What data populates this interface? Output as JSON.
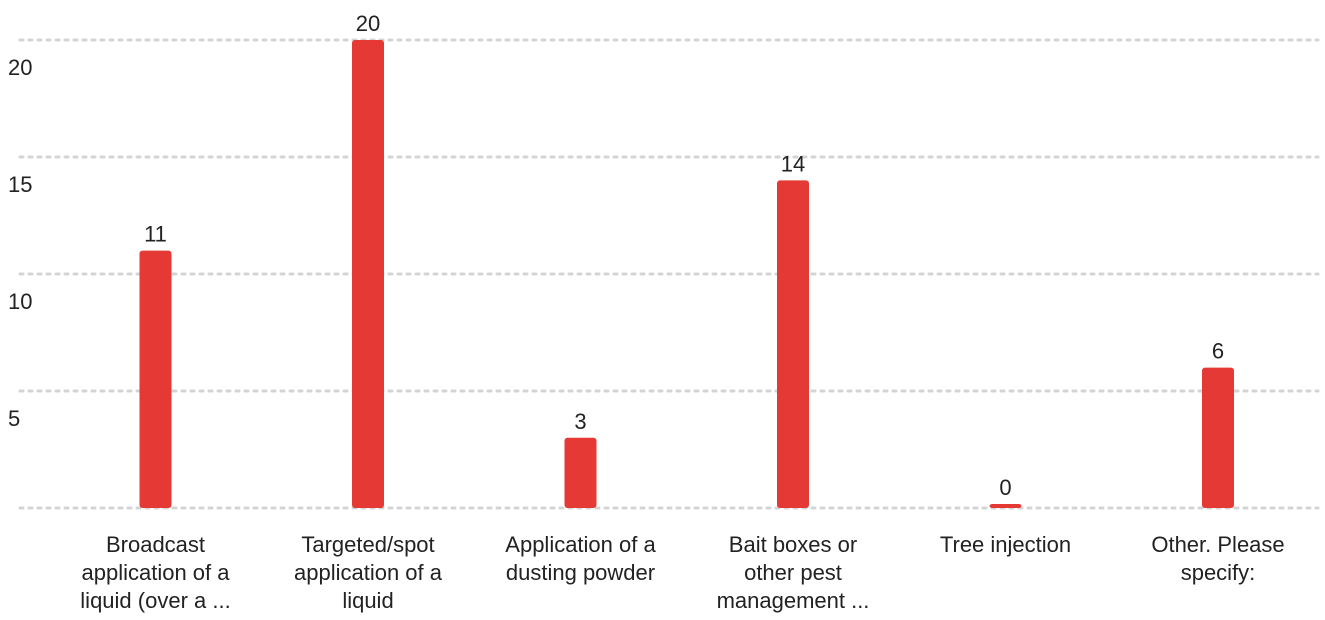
{
  "chart_data": {
    "type": "bar",
    "categories": [
      [
        "Broadcast",
        "application of a",
        "liquid (over a ..."
      ],
      [
        "Targeted/spot",
        "application of a",
        "liquid"
      ],
      [
        "Application of a",
        "dusting powder"
      ],
      [
        "Bait boxes or",
        "other pest",
        "management ..."
      ],
      [
        "Tree injection"
      ],
      [
        "Other. Please",
        "specify:"
      ]
    ],
    "values": [
      11,
      20,
      3,
      14,
      0,
      6
    ],
    "data_labels": [
      "11",
      "20",
      "3",
      "14",
      "0",
      "6"
    ],
    "yticks": [
      5,
      10,
      15,
      20
    ],
    "ylim": [
      0,
      20
    ],
    "grid": true,
    "colors": {
      "bar": "#e53935",
      "grid": "#d4d4d4",
      "text": "#222222"
    }
  }
}
